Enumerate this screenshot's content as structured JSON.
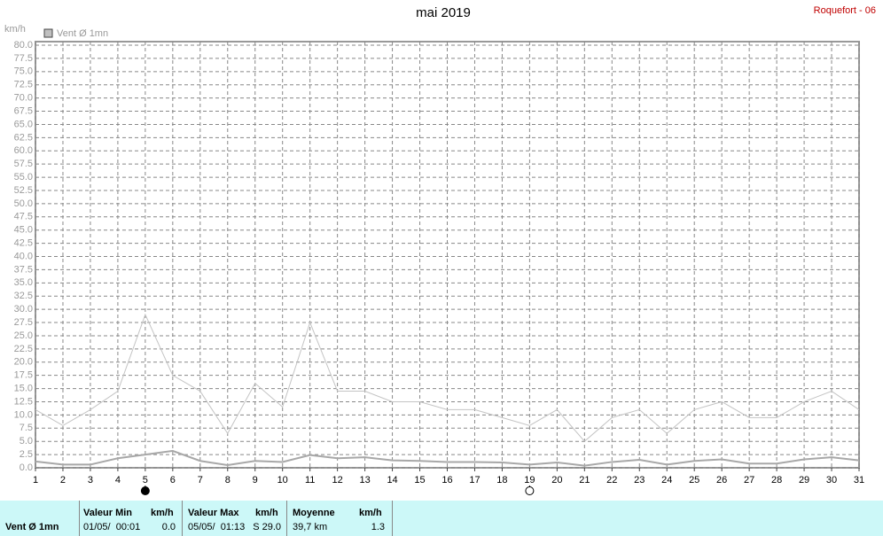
{
  "chart_data": {
    "type": "line",
    "title": "mai 2019",
    "station": "Roquefort - 06",
    "y_unit": "km/h",
    "x": [
      1,
      2,
      3,
      4,
      5,
      6,
      7,
      8,
      9,
      10,
      11,
      12,
      13,
      14,
      15,
      16,
      17,
      18,
      19,
      20,
      21,
      22,
      23,
      24,
      25,
      26,
      27,
      28,
      29,
      30,
      31
    ],
    "series": [
      {
        "name": "Vent Ø 1mn",
        "color": "#a8a8a8",
        "values": [
          1.2,
          0.6,
          0.6,
          1.8,
          2.5,
          3.2,
          1.3,
          0.5,
          1.3,
          1.1,
          2.4,
          1.8,
          2.0,
          1.4,
          1.3,
          1.1,
          1.1,
          1.0,
          0.6,
          1.0,
          0.4,
          1.1,
          1.5,
          0.6,
          1.3,
          1.6,
          0.8,
          0.8,
          1.6,
          2.0,
          1.4
        ]
      },
      {
        "color": "#c4c4c4",
        "values": [
          11,
          8,
          11,
          14.5,
          29,
          17.5,
          14.5,
          6.5,
          16,
          11.5,
          27.5,
          14.5,
          14.5,
          12.5,
          12.5,
          11,
          11,
          9.5,
          8,
          11,
          5,
          9.5,
          11,
          6.5,
          11,
          12.5,
          9.5,
          9.5,
          12.5,
          14.5,
          11
        ]
      }
    ],
    "xlim": [
      1,
      31
    ],
    "xticks": [
      1,
      2,
      3,
      4,
      5,
      6,
      7,
      8,
      9,
      10,
      11,
      12,
      13,
      14,
      15,
      16,
      17,
      18,
      19,
      20,
      21,
      22,
      23,
      24,
      25,
      26,
      27,
      28,
      29,
      30,
      31
    ],
    "ylim": [
      0,
      80
    ],
    "yticks": [
      {
        "value": 0,
        "label": "0.0"
      },
      2.5,
      {
        "value": 5,
        "label": "5.0"
      },
      7.5,
      {
        "value": 10,
        "label": "10.0"
      },
      12.5,
      {
        "value": 15,
        "label": "15.0"
      },
      17.5,
      {
        "value": 20,
        "label": "20.0"
      },
      22.5,
      {
        "value": 25,
        "label": "25.0"
      },
      27.5,
      {
        "value": 30,
        "label": "30.0"
      },
      32.5,
      {
        "value": 35,
        "label": "35.0"
      },
      37.5,
      {
        "value": 40,
        "label": "40.0"
      },
      42.5,
      {
        "value": 45,
        "label": "45.0"
      },
      47.5,
      {
        "value": 50,
        "label": "50.0"
      },
      52.5,
      {
        "value": 55,
        "label": "55.0"
      },
      57.5,
      {
        "value": 60,
        "label": "60.0"
      },
      62.5,
      {
        "value": 65,
        "label": "65.0"
      },
      67.5,
      {
        "value": 70,
        "label": "70.0"
      },
      72.5,
      {
        "value": 75,
        "label": "75.0"
      },
      77.5,
      {
        "value": 80,
        "label": "80.0"
      }
    ],
    "grid": true,
    "markers": [
      {
        "x": 5,
        "filled": true
      },
      {
        "x": 19,
        "filled": false
      }
    ]
  },
  "summary": {
    "label": "Vent Ø 1mn",
    "min": {
      "title": "Valeur Min",
      "unit": "km/h",
      "date": "01/05/  00:01",
      "value": "0.0"
    },
    "max": {
      "title": "Valeur Max",
      "unit": "km/h",
      "date": "05/05/  01:13",
      "value": "S 29.0"
    },
    "mean": {
      "title": "Moyenne",
      "unit": "km/h",
      "distance": "39,7 km",
      "value": "1.3"
    }
  }
}
